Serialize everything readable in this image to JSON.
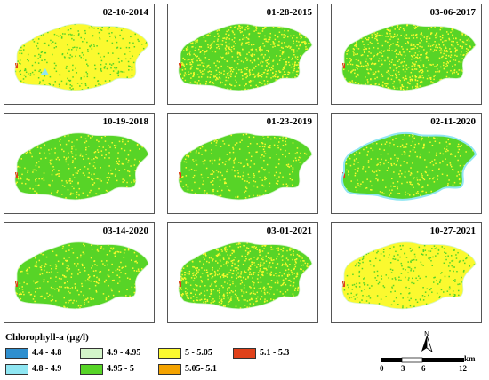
{
  "colors": {
    "c1": "#2e8fcf",
    "c2": "#8fe6f2",
    "c3": "#d4f5c9",
    "c4": "#57d427",
    "c5": "#fbf92f",
    "c6": "#f4a300",
    "c7": "#e0411a"
  },
  "panels": [
    {
      "date": "02-10-2014",
      "dominant": "yellow"
    },
    {
      "date": "01-28-2015",
      "dominant": "mixed"
    },
    {
      "date": "03-06-2017",
      "dominant": "mixed"
    },
    {
      "date": "10-19-2018",
      "dominant": "green"
    },
    {
      "date": "01-23-2019",
      "dominant": "green"
    },
    {
      "date": "02-11-2020",
      "dominant": "green"
    },
    {
      "date": "03-14-2020",
      "dominant": "green"
    },
    {
      "date": "03-01-2021",
      "dominant": "mixed"
    },
    {
      "date": "10-27-2021",
      "dominant": "yellow"
    }
  ],
  "legend": {
    "title": "Chlorophyll-a (μg/l)",
    "items": [
      {
        "label": "4.4 - 4.8",
        "color": "#2e8fcf"
      },
      {
        "label": "4.8 - 4.9",
        "color": "#8fe6f2"
      },
      {
        "label": "4.9 - 4.95",
        "color": "#d4f5c9"
      },
      {
        "label": "4.95 - 5",
        "color": "#57d427"
      },
      {
        "label": "5 - 5.05",
        "color": "#fbf92f"
      },
      {
        "label": "5.05- 5.1",
        "color": "#f4a300"
      },
      {
        "label": "5.1 - 5.3",
        "color": "#e0411a"
      }
    ]
  },
  "north_label": "N",
  "scale": {
    "ticks": [
      "0",
      "3",
      "6",
      "12"
    ],
    "unit": "km"
  }
}
